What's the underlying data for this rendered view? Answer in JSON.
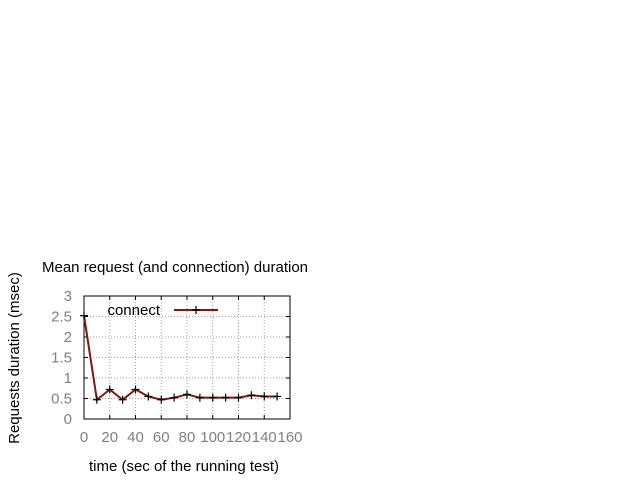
{
  "chart_data": {
    "type": "line",
    "title": "Mean request (and connection) duration",
    "xlabel": "time (sec of the running test)",
    "ylabel": "Requests duration (msec)",
    "xlim": [
      0,
      160
    ],
    "ylim": [
      0,
      3
    ],
    "x_ticks": [
      0,
      20,
      40,
      60,
      80,
      100,
      120,
      140,
      160
    ],
    "y_ticks": [
      0,
      0.5,
      1,
      1.5,
      2,
      2.5,
      3
    ],
    "x_tick_labels": [
      "0",
      "20",
      "40",
      "60",
      "80",
      "100",
      "120",
      "140",
      "160"
    ],
    "y_tick_labels": [
      "0",
      "0.5",
      "1",
      "1.5",
      "2",
      "2.5",
      "3"
    ],
    "grid": true,
    "legend_position": "top-left",
    "series": [
      {
        "name": "connect",
        "color": "#7a1a12",
        "marker": "plus",
        "x": [
          0,
          10,
          20,
          30,
          40,
          50,
          60,
          70,
          80,
          90,
          100,
          110,
          120,
          130,
          140,
          150
        ],
        "y": [
          2.52,
          0.47,
          0.72,
          0.47,
          0.72,
          0.55,
          0.47,
          0.52,
          0.6,
          0.52,
          0.52,
          0.52,
          0.52,
          0.58,
          0.55,
          0.55
        ]
      }
    ]
  }
}
